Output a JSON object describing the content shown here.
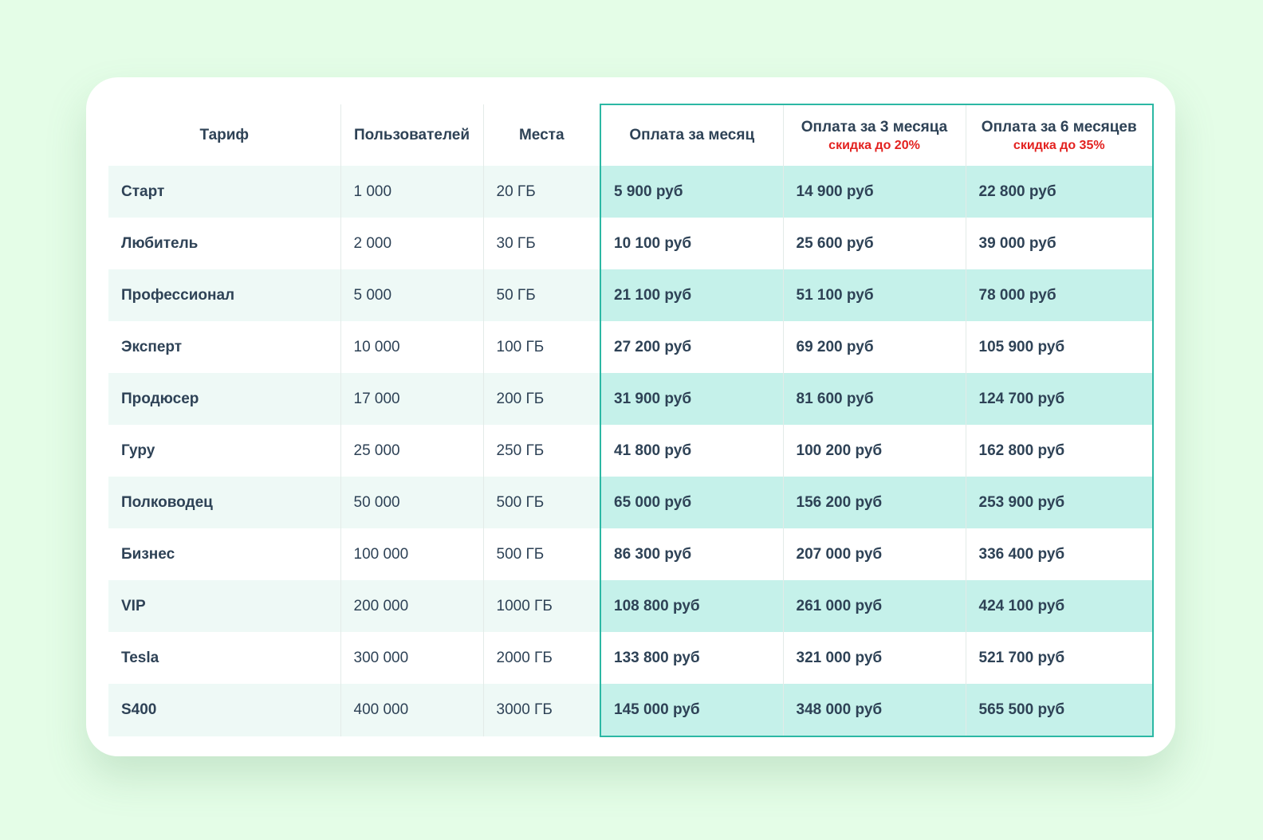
{
  "header": {
    "plan": "Тариф",
    "users": "Пользователей",
    "storage": "Места",
    "month": "Оплата за месяц",
    "three_months": "Оплата за 3 месяца",
    "three_months_discount": "скидка до 20%",
    "six_months": "Оплата за 6 месяцев",
    "six_months_discount": "скидка до 35%"
  },
  "colors": {
    "background": "#e4fde7",
    "highlight_border": "#2cb8a4",
    "highlight_fill": "#c5f1ea",
    "discount_text": "#e3211f"
  },
  "rows": [
    {
      "plan": "Старт",
      "users": "1 000",
      "storage": "20 ГБ",
      "month": "5 900 руб",
      "three": "14 900 руб",
      "six": "22 800 руб"
    },
    {
      "plan": "Любитель",
      "users": "2 000",
      "storage": "30 ГБ",
      "month": "10 100 руб",
      "three": "25 600 руб",
      "six": "39 000 руб"
    },
    {
      "plan": "Профессионал",
      "users": "5 000",
      "storage": "50 ГБ",
      "month": "21 100 руб",
      "three": "51 100 руб",
      "six": "78 000 руб"
    },
    {
      "plan": "Эксперт",
      "users": "10 000",
      "storage": "100 ГБ",
      "month": "27 200 руб",
      "three": "69 200 руб",
      "six": "105 900 руб"
    },
    {
      "plan": "Продюсер",
      "users": "17 000",
      "storage": "200 ГБ",
      "month": "31 900 руб",
      "three": "81 600 руб",
      "six": "124 700 руб"
    },
    {
      "plan": "Гуру",
      "users": "25 000",
      "storage": "250 ГБ",
      "month": "41 800 руб",
      "three": "100 200 руб",
      "six": "162 800 руб"
    },
    {
      "plan": "Полководец",
      "users": "50 000",
      "storage": "500 ГБ",
      "month": "65 000 руб",
      "three": "156 200 руб",
      "six": "253 900 руб"
    },
    {
      "plan": "Бизнес",
      "users": "100 000",
      "storage": "500 ГБ",
      "month": "86 300 руб",
      "three": "207 000 руб",
      "six": "336 400 руб"
    },
    {
      "plan": "VIP",
      "users": "200 000",
      "storage": "1000 ГБ",
      "month": "108 800 руб",
      "three": "261 000 руб",
      "six": "424 100 руб"
    },
    {
      "plan": "Tesla",
      "users": "300 000",
      "storage": "2000 ГБ",
      "month": "133 800 руб",
      "three": "321 000 руб",
      "six": "521 700 руб"
    },
    {
      "plan": "S400",
      "users": "400 000",
      "storage": "3000 ГБ",
      "month": "145 000 руб",
      "three": "348 000 руб",
      "six": "565 500 руб"
    }
  ]
}
